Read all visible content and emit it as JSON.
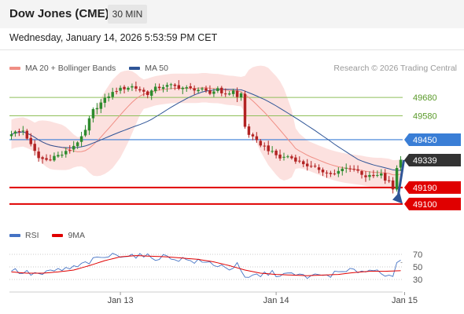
{
  "header": {
    "title": "Dow Jones (CME)",
    "timeframe": "30 MIN"
  },
  "datetime": "Wednesday, January 14, 2026 5:53:59 PM CET",
  "legend_top": {
    "items": [
      {
        "label": "MA 20 + Bollinger Bands",
        "color": "#f08e84"
      },
      {
        "label": "MA 50",
        "color": "#2f5597"
      }
    ]
  },
  "credit": "Research © 2026 Trading Central",
  "legend_bottom": {
    "items": [
      {
        "label": "RSI",
        "color": "#4472c4"
      },
      {
        "label": "9MA",
        "color": "#e00000"
      }
    ]
  },
  "colors": {
    "bull": "#2e8b2e",
    "bear": "#b22222",
    "band": "#fbd7d4",
    "ma20": "#f08e84",
    "ma50": "#2f5597",
    "resistance": "#8fbf5a",
    "pivot": "#3a7ed6",
    "support": "#e00000",
    "current": "#333333",
    "rsi": "#4472c4",
    "rsi_ma": "#e00000"
  },
  "chart_data": [
    {
      "type": "candlestick",
      "ylim": [
        48980,
        49800
      ],
      "x_labels": [
        {
          "label": "Jan 13",
          "index": 28
        },
        {
          "label": "Jan 14",
          "index": 68
        },
        {
          "label": "Jan 15",
          "index": 101
        }
      ],
      "levels": [
        {
          "value": 49680,
          "label": "49680",
          "kind": "resistance"
        },
        {
          "value": 49580,
          "label": "49580",
          "kind": "resistance"
        },
        {
          "value": 49450,
          "label": "49450",
          "kind": "pivot"
        },
        {
          "value": 49339,
          "label": "49339",
          "kind": "current"
        },
        {
          "value": 49190,
          "label": "49190",
          "kind": "support"
        },
        {
          "value": 49100,
          "label": "49100",
          "kind": "support"
        }
      ],
      "forecast_arrow": {
        "from_value": 49339,
        "to_value": 49110,
        "direction": "down"
      },
      "anchors": [
        [
          0,
          49485
        ],
        [
          3,
          49500
        ],
        [
          5,
          49420
        ],
        [
          7,
          49350
        ],
        [
          9,
          49340
        ],
        [
          11,
          49360
        ],
        [
          13,
          49370
        ],
        [
          15,
          49395
        ],
        [
          17,
          49440
        ],
        [
          18,
          49460
        ],
        [
          19,
          49500
        ],
        [
          20,
          49560
        ],
        [
          21,
          49610
        ],
        [
          23,
          49650
        ],
        [
          25,
          49690
        ],
        [
          27,
          49720
        ],
        [
          29,
          49730
        ],
        [
          31,
          49740
        ],
        [
          33,
          49720
        ],
        [
          35,
          49700
        ],
        [
          37,
          49730
        ],
        [
          39,
          49740
        ],
        [
          41,
          49745
        ],
        [
          43,
          49735
        ],
        [
          45,
          49730
        ],
        [
          47,
          49725
        ],
        [
          49,
          49720
        ],
        [
          51,
          49700
        ],
        [
          53,
          49730
        ],
        [
          55,
          49690
        ],
        [
          57,
          49720
        ],
        [
          58,
          49680
        ],
        [
          59,
          49700
        ],
        [
          60,
          49520
        ],
        [
          61,
          49480
        ],
        [
          62,
          49460
        ],
        [
          63,
          49440
        ],
        [
          65,
          49410
        ],
        [
          67,
          49380
        ],
        [
          69,
          49350
        ],
        [
          71,
          49360
        ],
        [
          73,
          49340
        ],
        [
          75,
          49320
        ],
        [
          77,
          49300
        ],
        [
          79,
          49290
        ],
        [
          81,
          49270
        ],
        [
          83,
          49260
        ],
        [
          85,
          49290
        ],
        [
          87,
          49300
        ],
        [
          89,
          49280
        ],
        [
          91,
          49250
        ],
        [
          93,
          49250
        ],
        [
          95,
          49260
        ],
        [
          96,
          49230
        ],
        [
          97,
          49220
        ],
        [
          98,
          49180
        ],
        [
          99,
          49300
        ],
        [
          100,
          49339
        ]
      ]
    },
    {
      "type": "line",
      "ylim": [
        15,
        85
      ],
      "yticks": [
        70,
        50,
        30
      ],
      "series": [
        {
          "name": "RSI",
          "anchors": [
            [
              0,
              45
            ],
            [
              4,
              40
            ],
            [
              8,
              38
            ],
            [
              12,
              45
            ],
            [
              16,
              48
            ],
            [
              20,
              58
            ],
            [
              24,
              66
            ],
            [
              28,
              70
            ],
            [
              32,
              68
            ],
            [
              36,
              65
            ],
            [
              40,
              66
            ],
            [
              44,
              62
            ],
            [
              48,
              58
            ],
            [
              52,
              55
            ],
            [
              56,
              48
            ],
            [
              58,
              52
            ],
            [
              60,
              30
            ],
            [
              62,
              35
            ],
            [
              66,
              40
            ],
            [
              70,
              38
            ],
            [
              74,
              36
            ],
            [
              78,
              35
            ],
            [
              82,
              38
            ],
            [
              86,
              42
            ],
            [
              90,
              45
            ],
            [
              94,
              44
            ],
            [
              96,
              40
            ],
            [
              98,
              38
            ],
            [
              99,
              52
            ],
            [
              100,
              57
            ]
          ]
        },
        {
          "name": "9MA",
          "anchors": [
            [
              0,
              42
            ],
            [
              4,
              40
            ],
            [
              8,
              40
            ],
            [
              12,
              42
            ],
            [
              16,
              45
            ],
            [
              20,
              52
            ],
            [
              24,
              60
            ],
            [
              28,
              66
            ],
            [
              32,
              68
            ],
            [
              36,
              67
            ],
            [
              40,
              66
            ],
            [
              44,
              64
            ],
            [
              48,
              62
            ],
            [
              52,
              58
            ],
            [
              56,
              52
            ],
            [
              60,
              45
            ],
            [
              64,
              40
            ],
            [
              68,
              38
            ],
            [
              72,
              37
            ],
            [
              76,
              36
            ],
            [
              80,
              37
            ],
            [
              84,
              38
            ],
            [
              88,
              41
            ],
            [
              92,
              43
            ],
            [
              96,
              43
            ],
            [
              100,
              44
            ]
          ]
        }
      ]
    }
  ]
}
